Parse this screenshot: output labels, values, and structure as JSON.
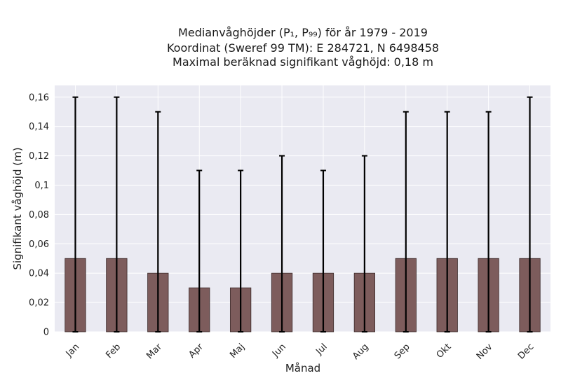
{
  "chart_data": {
    "type": "bar",
    "title_lines": [
      "Medianvåghöjder (P₁, P₉₉) för år 1979 - 2019",
      "Koordinat (Sweref 99 TM): E 284721, N 6498458",
      "Maximal beräknad signifikant våghöjd: 0,18 m"
    ],
    "xlabel": "Månad",
    "ylabel": "Signifikant våghöjd (m)",
    "categories": [
      "Jan",
      "Feb",
      "Mar",
      "Apr",
      "Maj",
      "Jun",
      "Jul",
      "Aug",
      "Sep",
      "Okt",
      "Nov",
      "Dec"
    ],
    "values": [
      0.05,
      0.05,
      0.04,
      0.03,
      0.03,
      0.04,
      0.04,
      0.04,
      0.05,
      0.05,
      0.05,
      0.05
    ],
    "error_low": [
      0,
      0,
      0,
      0,
      0,
      0,
      0,
      0,
      0,
      0,
      0,
      0
    ],
    "error_high": [
      0.16,
      0.16,
      0.15,
      0.11,
      0.11,
      0.12,
      0.11,
      0.12,
      0.15,
      0.15,
      0.15,
      0.16
    ],
    "ylim": [
      0,
      0.168
    ],
    "yticks": [
      0,
      0.02,
      0.04,
      0.06,
      0.08,
      0.1,
      0.12,
      0.14,
      0.16
    ],
    "ytick_labels": [
      "0",
      "0,02",
      "0,04",
      "0,06",
      "0,08",
      "0,1",
      "0,12",
      "0,14",
      "0,16"
    ],
    "grid": true,
    "colors": {
      "plot_background": "#eaeaf2",
      "bar_fill": "#7d5c5c",
      "bar_edge": "#3a2a2a",
      "error_bar": "#000000",
      "grid": "#ffffff"
    }
  }
}
